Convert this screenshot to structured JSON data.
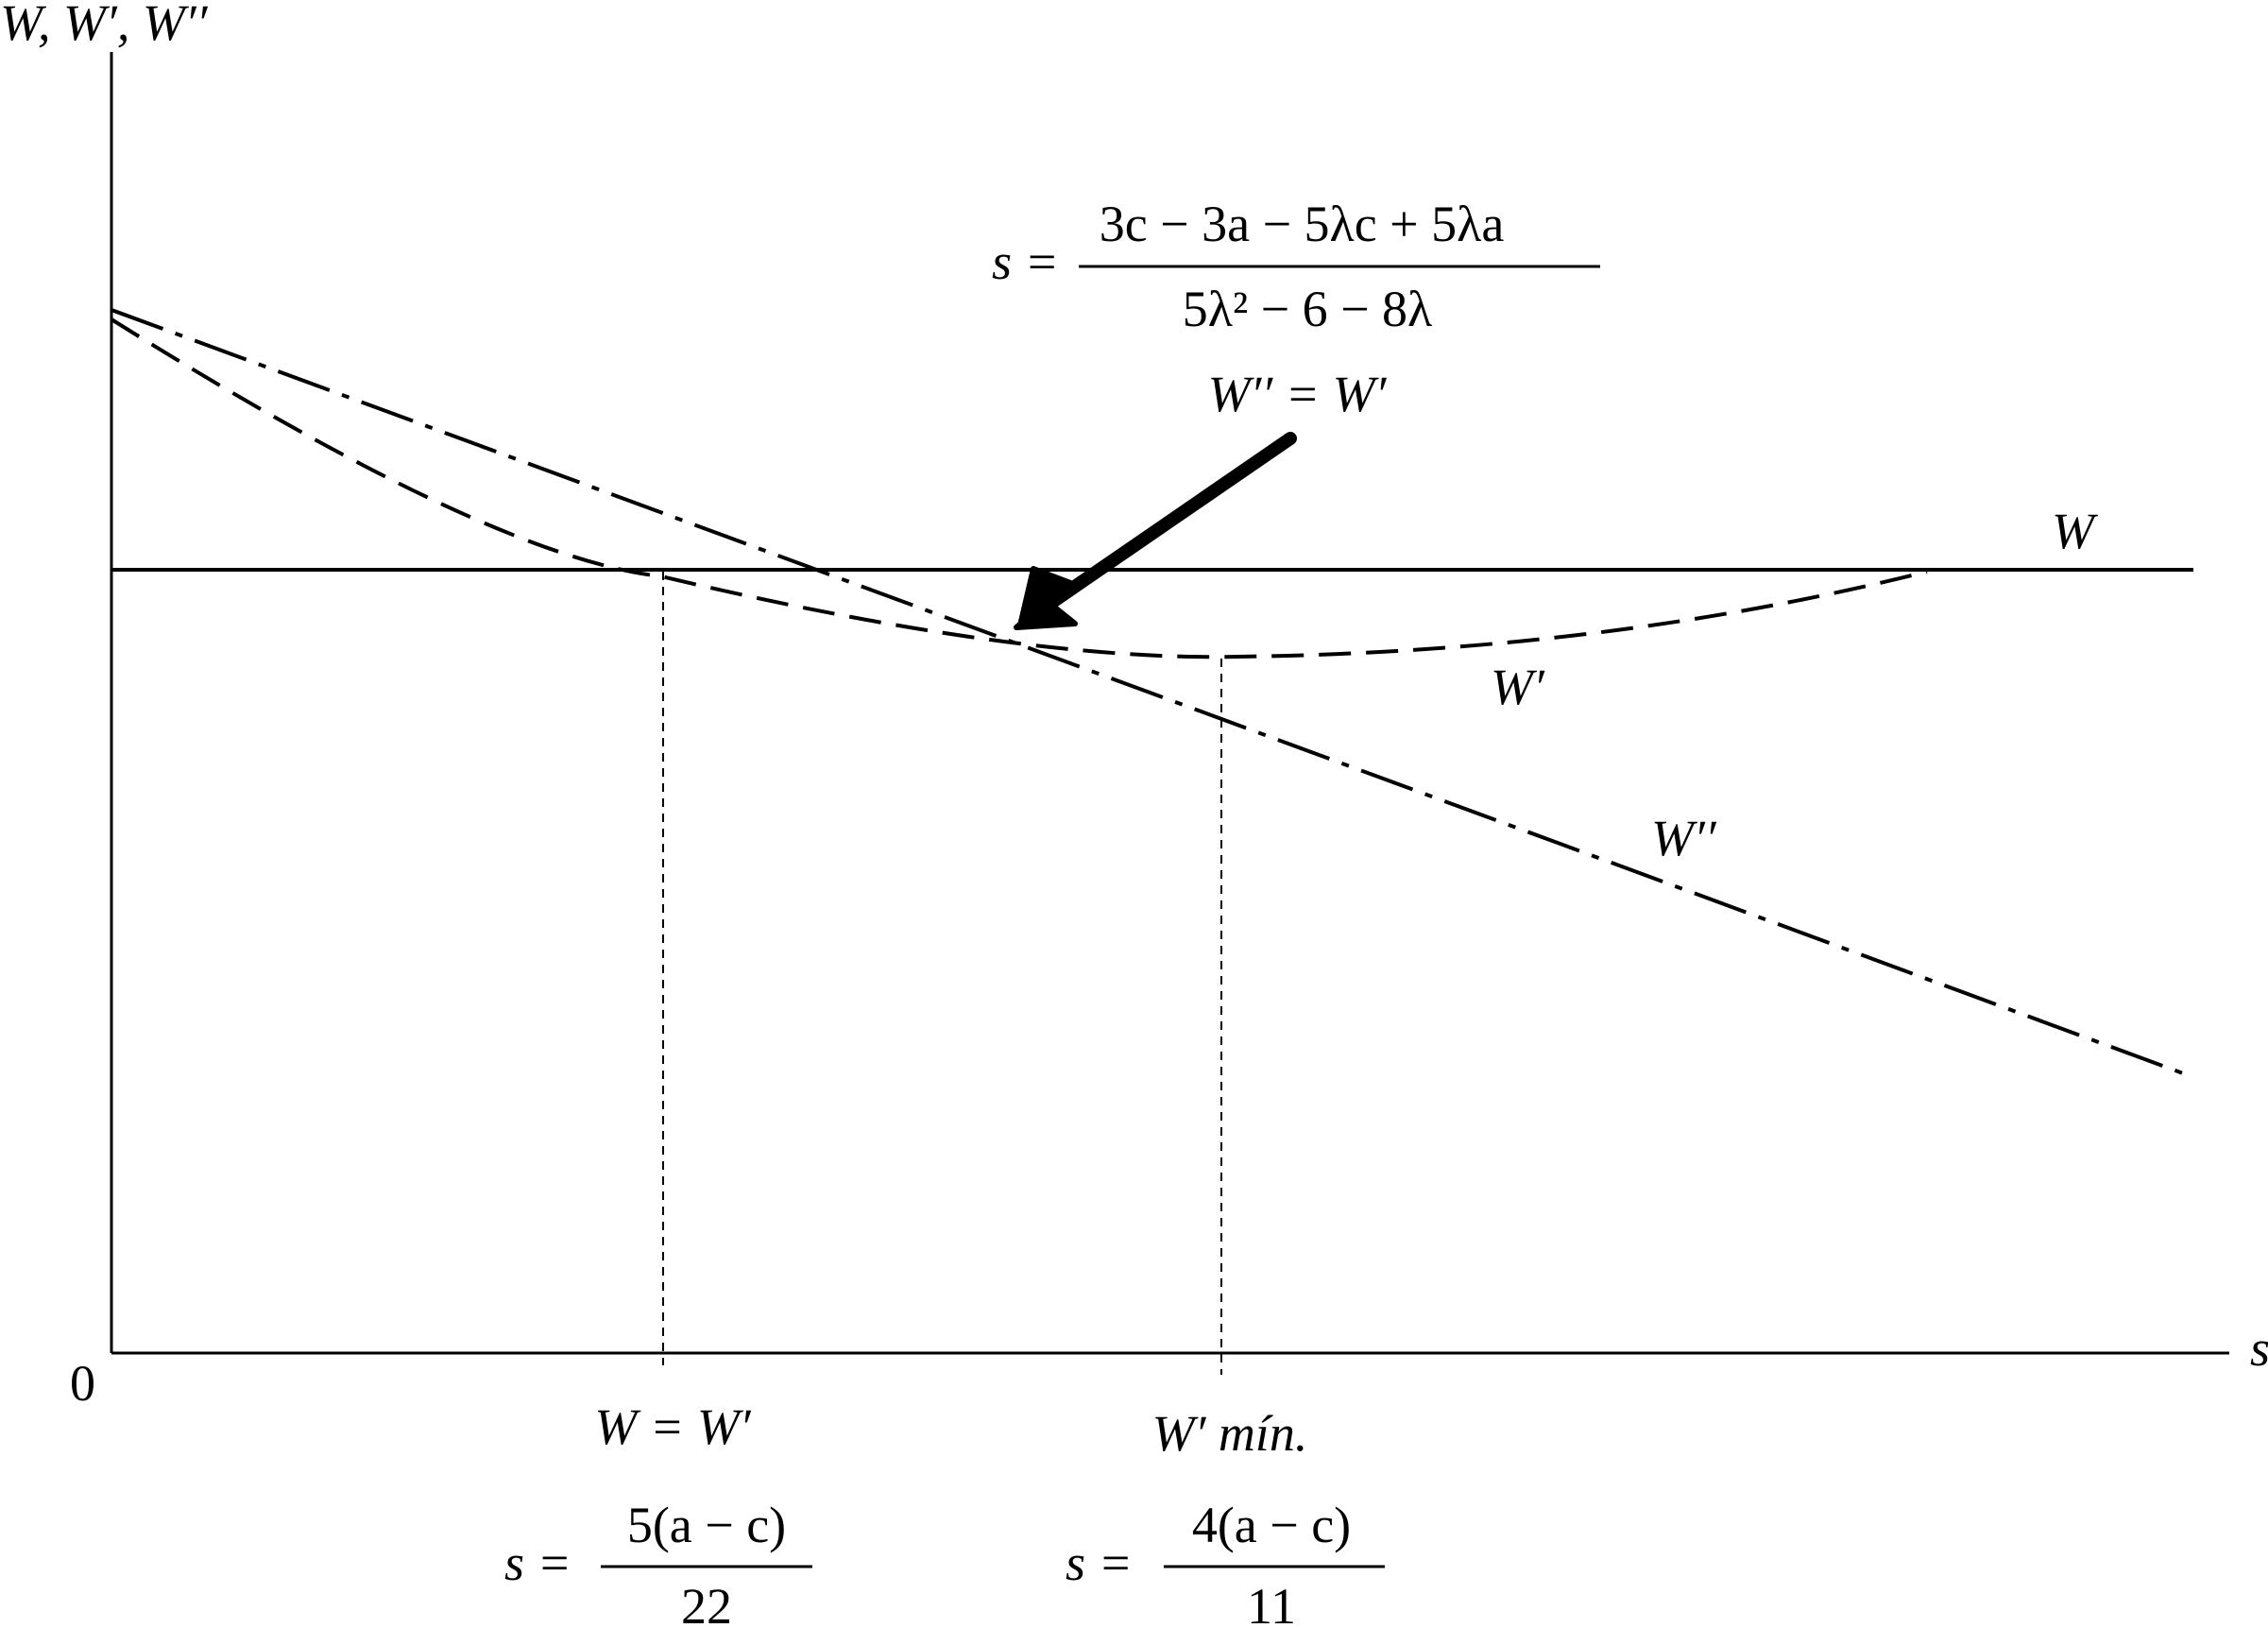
{
  "axes": {
    "y_label": "W, W′, W′′",
    "x_label": "s",
    "origin_label": "0"
  },
  "curves": {
    "w_label": "W",
    "w_prime_label": "W′",
    "w_double_prime_label": "W′′"
  },
  "arrow_annotation": {
    "lhs": "s =",
    "numerator": "3c − 3a − 5λc + 5λa",
    "denominator": "5λ² − 6 − 8λ",
    "caption": "W′′ = W′"
  },
  "markers": [
    {
      "label": "W = W′",
      "lhs": "s =",
      "numerator": "5(a − c)",
      "denominator": "22"
    },
    {
      "label": "W′ mín.",
      "lhs": "s =",
      "numerator": "4(a − c)",
      "denominator": "11"
    }
  ]
}
